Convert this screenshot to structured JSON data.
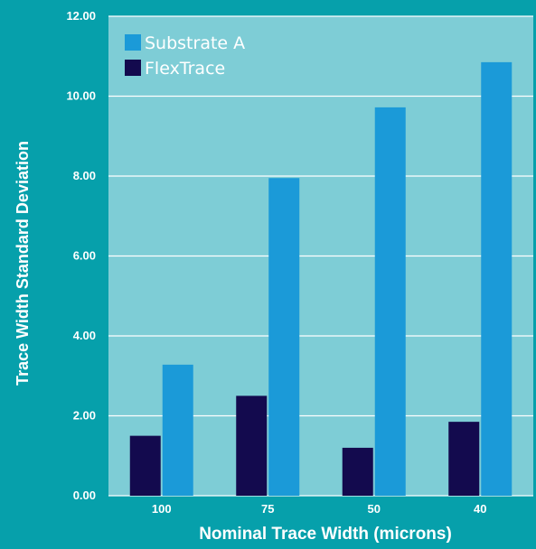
{
  "colors": {
    "background": "#06a0ab",
    "plot_area": "#7ecdd6",
    "grid": "#ffffff",
    "substrate_a": "#1b9ad8",
    "flextrace": "#130a4e",
    "text": "#ffffff"
  },
  "chart_data": {
    "type": "bar",
    "categories": [
      "100",
      "75",
      "50",
      "40"
    ],
    "series": [
      {
        "name": "FlexTrace",
        "values": [
          1.5,
          2.5,
          1.2,
          1.85
        ],
        "color": "#130a4e"
      },
      {
        "name": "Substrate A",
        "values": [
          3.28,
          7.95,
          9.72,
          10.85
        ],
        "color": "#1b9ad8"
      }
    ],
    "legend_order": [
      "Substrate A",
      "FlexTrace"
    ],
    "title": "",
    "xlabel": "Nominal Trace Width (microns)",
    "ylabel": "Trace Width Standard Deviation",
    "ylim": [
      0,
      12
    ],
    "yticks": [
      "0.00",
      "2.00",
      "4.00",
      "6.00",
      "8.00",
      "10.00",
      "12.00"
    ],
    "grid": true,
    "legend_position": "top-left"
  }
}
